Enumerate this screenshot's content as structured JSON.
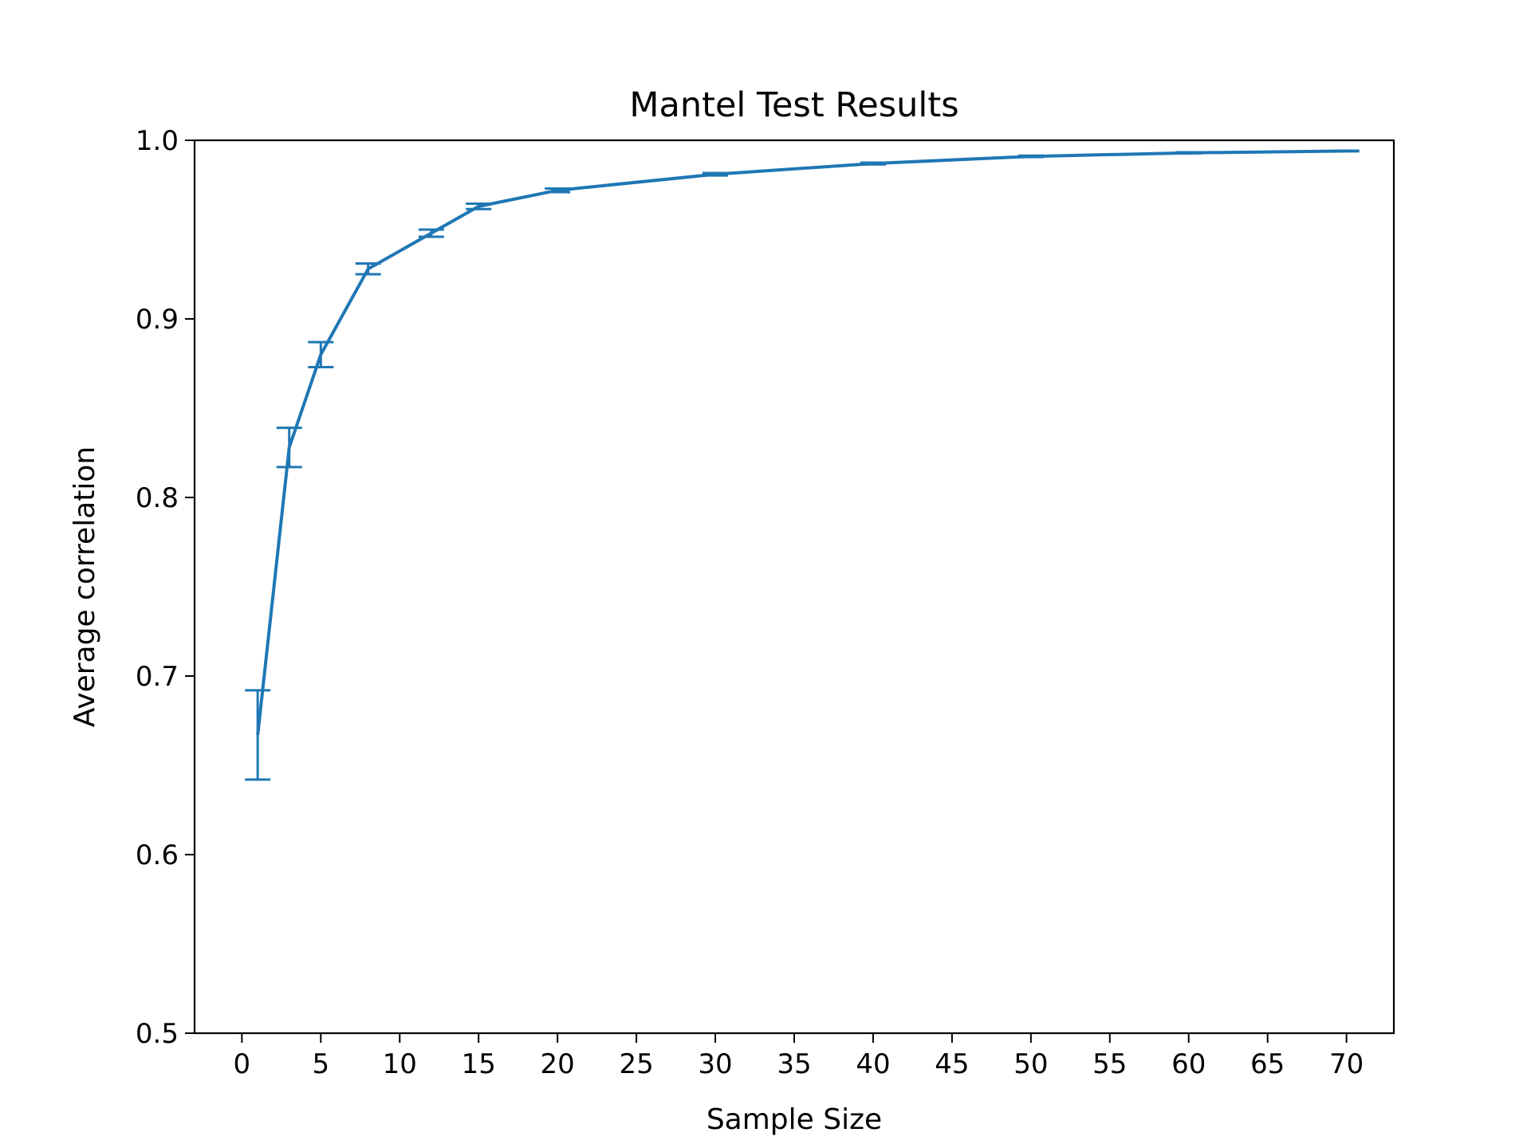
{
  "chart_data": {
    "type": "line",
    "title": "Mantel Test Results",
    "xlabel": "Sample Size",
    "ylabel": "Average correlation",
    "xlim": [
      -3,
      73
    ],
    "ylim": [
      0.5,
      1.0
    ],
    "xticks": [
      0,
      5,
      10,
      15,
      20,
      25,
      30,
      35,
      40,
      45,
      50,
      55,
      60,
      65,
      70
    ],
    "xtick_labels": [
      "0",
      "5",
      "10",
      "15",
      "20",
      "25",
      "30",
      "35",
      "40",
      "45",
      "50",
      "55",
      "60",
      "65",
      "70"
    ],
    "yticks": [
      0.5,
      0.6,
      0.7,
      0.8,
      0.9,
      1.0
    ],
    "ytick_labels": [
      "0.5",
      "0.6",
      "0.7",
      "0.8",
      "0.9",
      "1.0"
    ],
    "grid": false,
    "legend": false,
    "series": [
      {
        "color": "#1f77b4",
        "x": [
          1,
          3,
          5,
          8,
          12,
          15,
          20,
          30,
          40,
          50,
          60,
          70
        ],
        "y": [
          0.667,
          0.828,
          0.88,
          0.928,
          0.948,
          0.963,
          0.972,
          0.981,
          0.987,
          0.991,
          0.993,
          0.994
        ],
        "yerr": [
          0.025,
          0.011,
          0.007,
          0.003,
          0.002,
          0.0015,
          0.001,
          0.0007,
          0.0005,
          0.0004,
          0.0003,
          0.0002
        ]
      }
    ]
  }
}
